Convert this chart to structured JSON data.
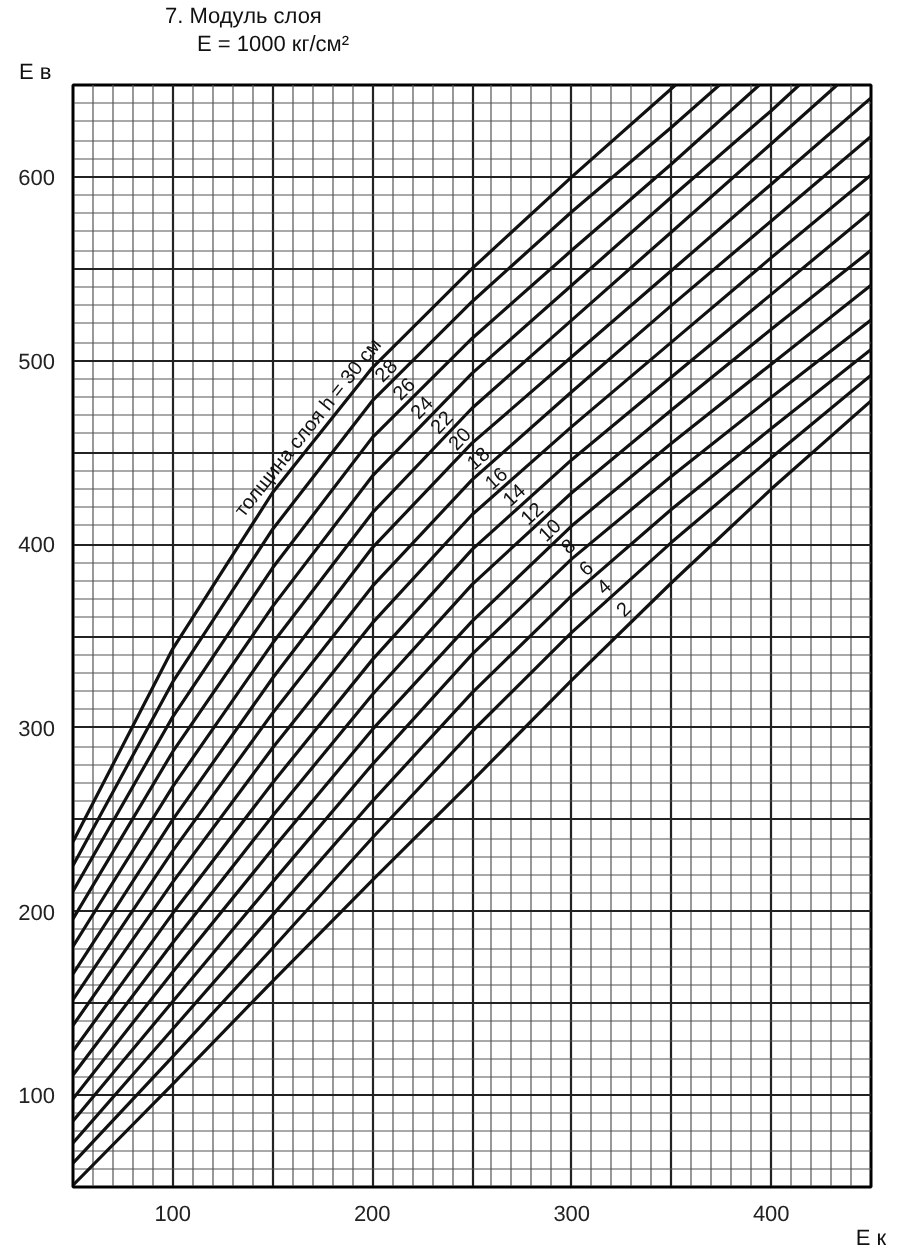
{
  "chart_data": {
    "type": "line",
    "title": "7. Модуль слоя",
    "subtitle": "E = 1000 кг/см²",
    "xlabel": "E к",
    "ylabel": "E в",
    "xlim": [
      50,
      450
    ],
    "ylim": [
      50,
      650
    ],
    "xticks": [
      100,
      {
        "value": 150,
        "label": null
      },
      200,
      {
        "value": 250,
        "label": null
      },
      300,
      {
        "value": 350,
        "label": null
      },
      400
    ],
    "yticks": [
      100,
      {
        "value": 150,
        "label": null
      },
      200,
      {
        "value": 250,
        "label": null
      },
      300,
      {
        "value": 350,
        "label": null
      },
      400,
      {
        "value": 450,
        "label": null
      },
      500,
      {
        "value": 550,
        "label": null
      },
      600
    ],
    "grid": true,
    "line_style": "solid",
    "x": [
      50,
      100,
      150,
      200,
      250,
      300,
      350,
      400,
      450
    ],
    "series": [
      {
        "color": "#111111",
        "values": [
          51,
          106,
          162,
          217,
          271,
          326,
          379,
          430,
          478
        ]
      },
      {
        "color": "#111111",
        "values": [
          63,
          121,
          180,
          240,
          298,
          352,
          401,
          447,
          492
        ]
      },
      {
        "color": "#111111",
        "values": [
          74,
          136,
          198,
          260,
          319,
          372,
          419,
          463,
          506
        ]
      },
      {
        "color": "#111111",
        "values": [
          86,
          151,
          216,
          280,
          340,
          392,
          437,
          480,
          522
        ]
      },
      {
        "color": "#111111",
        "values": [
          98,
          167,
          234,
          299,
          358,
          410,
          455,
          498,
          541
        ]
      },
      {
        "color": "#111111",
        "values": [
          111,
          183,
          252,
          318,
          378,
          428,
          473,
          517,
          560
        ]
      },
      {
        "color": "#111111",
        "values": [
          124,
          199,
          270,
          337,
          397,
          446,
          491,
          536,
          581
        ]
      },
      {
        "color": "#111111",
        "values": [
          138,
          216,
          289,
          357,
          416,
          464,
          510,
          556,
          601
        ]
      },
      {
        "color": "#111111",
        "values": [
          152,
          233,
          308,
          377,
          435,
          483,
          530,
          576,
          622
        ]
      },
      {
        "color": "#111111",
        "values": [
          166,
          250,
          327,
          398,
          455,
          502,
          549,
          596,
          643
        ]
      },
      {
        "color": "#111111",
        "x": [
          50,
          100,
          150,
          200,
          250,
          300,
          350,
          400,
          433
        ],
        "values": [
          181,
          268,
          346,
          417,
          474,
          522,
          570,
          618,
          650
        ]
      },
      {
        "color": "#111111",
        "x": [
          50,
          100,
          150,
          200,
          250,
          300,
          350,
          400,
          414
        ],
        "values": [
          196,
          287,
          366,
          437,
          493,
          541,
          589,
          636,
          650
        ]
      },
      {
        "color": "#111111",
        "x": [
          50,
          100,
          150,
          200,
          250,
          300,
          350,
          394
        ],
        "values": [
          211,
          306,
          387,
          458,
          512,
          560,
          607,
          650
        ]
      },
      {
        "color": "#111111",
        "x": [
          50,
          100,
          150,
          200,
          250,
          300,
          350,
          374
        ],
        "values": [
          225,
          325,
          408,
          478,
          532,
          581,
          627,
          650
        ]
      },
      {
        "color": "#111111",
        "x": [
          50,
          100,
          150,
          200,
          250,
          300,
          352
        ],
        "values": [
          238,
          343,
          428,
          496,
          550,
          600,
          650
        ]
      }
    ],
    "annotations": [
      {
        "text": "толщина слоя h = 30 см",
        "x": 173,
        "y": 459
      },
      {
        "text": "28",
        "x": 211,
        "y": 490
      },
      {
        "text": "26",
        "x": 220,
        "y": 480
      },
      {
        "text": "24",
        "x": 229,
        "y": 470
      },
      {
        "text": "22",
        "x": 239,
        "y": 462
      },
      {
        "text": "20",
        "x": 248,
        "y": 453
      },
      {
        "text": "18",
        "x": 257,
        "y": 442
      },
      {
        "text": "16",
        "x": 266,
        "y": 431
      },
      {
        "text": "14",
        "x": 275,
        "y": 422
      },
      {
        "text": "12",
        "x": 284,
        "y": 412
      },
      {
        "text": "10",
        "x": 293,
        "y": 403
      },
      {
        "text": "8",
        "x": 302,
        "y": 394
      },
      {
        "text": "6",
        "x": 311,
        "y": 382
      },
      {
        "text": "4",
        "x": 320,
        "y": 372
      },
      {
        "text": "2",
        "x": 330,
        "y": 360
      }
    ]
  }
}
